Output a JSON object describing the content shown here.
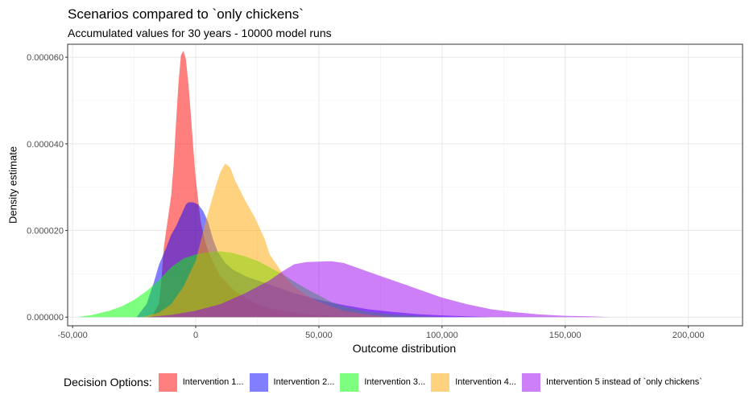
{
  "chart_data": {
    "type": "area",
    "title": "Scenarios compared to `only chickens`",
    "subtitle": "Accumulated values for 30 years - 10000 model runs",
    "xlabel": "Outcome distribution",
    "ylabel": "Density estimate",
    "xlim": [
      -52000,
      222000
    ],
    "ylim": [
      -2e-06,
      6.3e-05
    ],
    "x_ticks": [
      -50000,
      0,
      50000,
      100000,
      150000,
      200000
    ],
    "x_tick_labels": [
      "-50,000",
      "0",
      "50,000",
      "100,000",
      "150,000",
      "200,000"
    ],
    "y_ticks": [
      0,
      2e-05,
      4e-05,
      6e-05
    ],
    "y_tick_labels": [
      "0.000000",
      "0.000020",
      "0.000040",
      "0.000060"
    ],
    "grid": true,
    "legend": {
      "title": "Decision Options:",
      "position": "bottom"
    },
    "series": [
      {
        "name": "Intervention 1...",
        "color": "#ff0000",
        "points": [
          [
            -18000,
            0
          ],
          [
            -15000,
            3e-06
          ],
          [
            -14000,
            8e-06
          ],
          [
            -13000,
            1.6e-05
          ],
          [
            -11500,
            2.2e-05
          ],
          [
            -10000,
            2.8e-05
          ],
          [
            -9000,
            3.5e-05
          ],
          [
            -8000,
            4.5e-05
          ],
          [
            -7000,
            5.4e-05
          ],
          [
            -6000,
            6.05e-05
          ],
          [
            -5000,
            6.15e-05
          ],
          [
            -4000,
            5.95e-05
          ],
          [
            -3000,
            5.4e-05
          ],
          [
            -2000,
            4.7e-05
          ],
          [
            -1000,
            3.9e-05
          ],
          [
            0,
            3.2e-05
          ],
          [
            1000,
            2.7e-05
          ],
          [
            2000,
            2.2e-05
          ],
          [
            4000,
            1.7e-05
          ],
          [
            6000,
            1.4e-05
          ],
          [
            8000,
            1.15e-05
          ],
          [
            10000,
            9.5e-06
          ],
          [
            15000,
            6.5e-06
          ],
          [
            20000,
            4.5e-06
          ],
          [
            25000,
            3e-06
          ],
          [
            30000,
            2e-06
          ],
          [
            40000,
            1e-06
          ],
          [
            50000,
            5e-07
          ],
          [
            60000,
            2e-07
          ],
          [
            70000,
            0
          ]
        ]
      },
      {
        "name": "Intervention 2...",
        "color": "#0000ff",
        "points": [
          [
            -24000,
            0
          ],
          [
            -20000,
            3e-06
          ],
          [
            -17000,
            8e-06
          ],
          [
            -15000,
            1.2e-05
          ],
          [
            -12000,
            1.6e-05
          ],
          [
            -10000,
            1.9e-05
          ],
          [
            -8000,
            2.1e-05
          ],
          [
            -6000,
            2.35e-05
          ],
          [
            -4000,
            2.6e-05
          ],
          [
            -3000,
            2.65e-05
          ],
          [
            -1000,
            2.65e-05
          ],
          [
            1000,
            2.6e-05
          ],
          [
            3000,
            2.45e-05
          ],
          [
            5000,
            2.2e-05
          ],
          [
            7000,
            1.8e-05
          ],
          [
            9000,
            1.5e-05
          ],
          [
            12000,
            1.25e-05
          ],
          [
            15000,
            1.1e-05
          ],
          [
            20000,
            9.5e-06
          ],
          [
            25000,
            8.5e-06
          ],
          [
            30000,
            7.5e-06
          ],
          [
            40000,
            5.5e-06
          ],
          [
            50000,
            4e-06
          ],
          [
            60000,
            2.8e-06
          ],
          [
            70000,
            1.8e-06
          ],
          [
            80000,
            1.2e-06
          ],
          [
            90000,
            7e-07
          ],
          [
            100000,
            4e-07
          ],
          [
            110000,
            2e-07
          ],
          [
            120000,
            0
          ]
        ]
      },
      {
        "name": "Intervention 3...",
        "color": "#00ff00",
        "points": [
          [
            -48000,
            0
          ],
          [
            -42000,
            5e-07
          ],
          [
            -35000,
            1.5e-06
          ],
          [
            -30000,
            2.5e-06
          ],
          [
            -25000,
            4e-06
          ],
          [
            -20000,
            6e-06
          ],
          [
            -15000,
            8.5e-06
          ],
          [
            -10000,
            1.15e-05
          ],
          [
            -5000,
            1.35e-05
          ],
          [
            0,
            1.45e-05
          ],
          [
            5000,
            1.5e-05
          ],
          [
            10000,
            1.52e-05
          ],
          [
            15000,
            1.48e-05
          ],
          [
            20000,
            1.4e-05
          ],
          [
            25000,
            1.3e-05
          ],
          [
            30000,
            1.15e-05
          ],
          [
            35000,
            1e-05
          ],
          [
            40000,
            8.2e-06
          ],
          [
            45000,
            6.5e-06
          ],
          [
            50000,
            5e-06
          ],
          [
            55000,
            3.5e-06
          ],
          [
            60000,
            2.5e-06
          ],
          [
            70000,
            1.2e-06
          ],
          [
            80000,
            6e-07
          ],
          [
            90000,
            3e-07
          ],
          [
            100000,
            0
          ]
        ]
      },
      {
        "name": "Intervention 4...",
        "color": "#ffa500",
        "points": [
          [
            -22000,
            0
          ],
          [
            -15000,
            1e-06
          ],
          [
            -10000,
            3e-06
          ],
          [
            -5000,
            7e-06
          ],
          [
            0,
            1.3e-05
          ],
          [
            4000,
            2.2e-05
          ],
          [
            6000,
            2.6e-05
          ],
          [
            8000,
            3e-05
          ],
          [
            10000,
            3.35e-05
          ],
          [
            12000,
            3.55e-05
          ],
          [
            14000,
            3.45e-05
          ],
          [
            16000,
            3.15e-05
          ],
          [
            20000,
            2.7e-05
          ],
          [
            24000,
            2.3e-05
          ],
          [
            28000,
            1.8e-05
          ],
          [
            30000,
            1.45e-05
          ],
          [
            33000,
            1.2e-05
          ],
          [
            36000,
            9.5e-06
          ],
          [
            40000,
            7e-06
          ],
          [
            45000,
            5e-06
          ],
          [
            50000,
            3.5e-06
          ],
          [
            60000,
            1.5e-06
          ],
          [
            70000,
            6e-07
          ],
          [
            80000,
            0
          ]
        ]
      },
      {
        "name": "Intervention 5 instead of `only chickens`",
        "color": "#9900ee",
        "points": [
          [
            -20000,
            0
          ],
          [
            -10000,
            5e-07
          ],
          [
            0,
            1.5e-06
          ],
          [
            10000,
            3e-06
          ],
          [
            20000,
            5.5e-06
          ],
          [
            30000,
            8.5e-06
          ],
          [
            35000,
            1.05e-05
          ],
          [
            40000,
            1.22e-05
          ],
          [
            45000,
            1.27e-05
          ],
          [
            50000,
            1.28e-05
          ],
          [
            55000,
            1.29e-05
          ],
          [
            60000,
            1.25e-05
          ],
          [
            65000,
            1.15e-05
          ],
          [
            70000,
            1.05e-05
          ],
          [
            75000,
            9.5e-06
          ],
          [
            80000,
            8.5e-06
          ],
          [
            85000,
            7.5e-06
          ],
          [
            90000,
            6.5e-06
          ],
          [
            95000,
            5.5e-06
          ],
          [
            100000,
            4.5e-06
          ],
          [
            110000,
            3e-06
          ],
          [
            120000,
            1.8e-06
          ],
          [
            130000,
            1.1e-06
          ],
          [
            140000,
            6e-07
          ],
          [
            150000,
            3e-07
          ],
          [
            160000,
            2e-07
          ],
          [
            168000,
            0
          ]
        ]
      }
    ]
  }
}
